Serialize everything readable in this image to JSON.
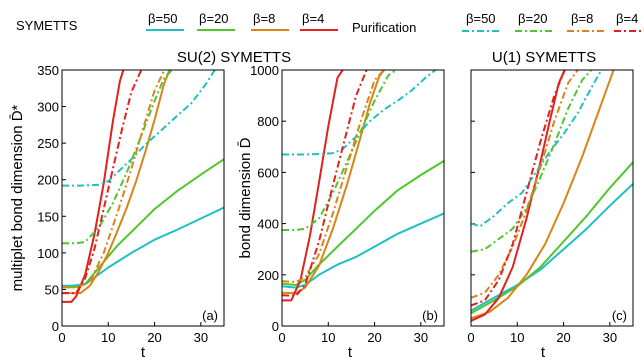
{
  "legend": {
    "groups": [
      {
        "label": "SYMETTS",
        "dash": "solid"
      },
      {
        "label": "Purification",
        "dash": "dashdot"
      }
    ],
    "betas": [
      {
        "label": "β=50",
        "color": "#1fbfc4"
      },
      {
        "label": "β=20",
        "color": "#4fc72c"
      },
      {
        "label": "β=8",
        "color": "#d98319"
      },
      {
        "label": "β=4",
        "color": "#e3201b"
      }
    ]
  },
  "chart_data": [
    {
      "type": "line",
      "panel": "(a)",
      "title": "SU(2) SYMETTS",
      "xlabel": "t",
      "ylabel": "multiplet bond dimension D̄*",
      "xlim": [
        0,
        35
      ],
      "ylim": [
        0,
        350
      ],
      "xticks": [
        0,
        10,
        20,
        30
      ],
      "yticks": [
        0,
        50,
        100,
        150,
        200,
        250,
        300,
        350
      ],
      "series": [
        {
          "name": "β=50",
          "method": "SYMETTS",
          "color": "#1fbfc4",
          "dash": "solid",
          "x": [
            0,
            2,
            5,
            10,
            15,
            20,
            25,
            30,
            35
          ],
          "y": [
            55,
            55,
            57,
            80,
            100,
            118,
            132,
            147,
            162
          ]
        },
        {
          "name": "β=20",
          "method": "SYMETTS",
          "color": "#4fc72c",
          "dash": "solid",
          "x": [
            0,
            3,
            5,
            8,
            12,
            16,
            20,
            25,
            30,
            35
          ],
          "y": [
            53,
            53,
            57,
            80,
            110,
            135,
            160,
            185,
            207,
            228
          ]
        },
        {
          "name": "β=8",
          "method": "SYMETTS",
          "color": "#d98319",
          "dash": "solid",
          "x": [
            0,
            4,
            6,
            8,
            10,
            12,
            14,
            16,
            18,
            20,
            22,
            23.5
          ],
          "y": [
            45,
            45,
            55,
            75,
            100,
            130,
            162,
            198,
            238,
            282,
            330,
            355
          ]
        },
        {
          "name": "β=4",
          "method": "SYMETTS",
          "color": "#e3201b",
          "dash": "solid",
          "x": [
            0,
            2,
            3,
            5,
            7,
            9,
            11,
            12.5,
            13.5
          ],
          "y": [
            33,
            33,
            40,
            70,
            125,
            195,
            280,
            335,
            355
          ]
        },
        {
          "name": "β=50",
          "method": "Purification",
          "color": "#1fbfc4",
          "dash": "dashdot",
          "x": [
            0,
            4,
            8,
            10,
            12,
            15,
            18,
            21,
            25,
            28,
            31,
            33.5
          ],
          "y": [
            192,
            192,
            193,
            198,
            210,
            228,
            248,
            265,
            288,
            305,
            330,
            355
          ]
        },
        {
          "name": "β=20",
          "method": "Purification",
          "color": "#4fc72c",
          "dash": "dashdot",
          "x": [
            0,
            3,
            5,
            8,
            11,
            14,
            17,
            20,
            22,
            24.5
          ],
          "y": [
            113,
            113,
            115,
            135,
            168,
            210,
            258,
            308,
            338,
            355
          ]
        },
        {
          "name": "β=8",
          "method": "Purification",
          "color": "#d98319",
          "dash": "dashdot",
          "x": [
            0,
            3,
            6,
            9,
            12,
            15,
            18,
            20,
            22.5
          ],
          "y": [
            53,
            53,
            60,
            100,
            155,
            215,
            280,
            322,
            355
          ]
        },
        {
          "name": "β=4",
          "method": "Purification",
          "color": "#e3201b",
          "dash": "dashdot",
          "x": [
            0,
            3,
            5,
            7,
            9,
            11,
            13,
            15,
            17.5
          ],
          "y": [
            45,
            45,
            65,
            105,
            160,
            215,
            270,
            320,
            355
          ]
        }
      ]
    },
    {
      "type": "line",
      "panel": "(b)",
      "title": "",
      "xlabel": "t",
      "ylabel": "bond dimension D̄",
      "xlim": [
        0,
        35
      ],
      "ylim": [
        0,
        1000
      ],
      "xticks": [
        0,
        10,
        20,
        30
      ],
      "yticks": [
        0,
        200,
        400,
        600,
        800,
        1000
      ],
      "series": [
        {
          "name": "β=50",
          "method": "SYMETTS",
          "color": "#1fbfc4",
          "dash": "solid",
          "x": [
            0,
            3,
            5,
            8,
            12,
            16,
            20,
            25,
            30,
            35
          ],
          "y": [
            155,
            150,
            160,
            200,
            240,
            270,
            310,
            360,
            400,
            440
          ]
        },
        {
          "name": "β=20",
          "method": "SYMETTS",
          "color": "#4fc72c",
          "dash": "solid",
          "x": [
            0,
            3,
            5,
            8,
            12,
            16,
            20,
            25,
            30,
            35
          ],
          "y": [
            165,
            160,
            180,
            240,
            310,
            380,
            450,
            530,
            590,
            645
          ]
        },
        {
          "name": "β=8",
          "method": "SYMETTS",
          "color": "#d98319",
          "dash": "solid",
          "x": [
            0,
            3,
            5,
            8,
            11,
            14,
            17,
            19,
            21,
            22.5
          ],
          "y": [
            130,
            128,
            150,
            235,
            380,
            550,
            740,
            870,
            975,
            1010
          ]
        },
        {
          "name": "β=4",
          "method": "SYMETTS",
          "color": "#e3201b",
          "dash": "solid",
          "x": [
            0,
            2,
            4,
            6,
            8,
            10,
            12,
            13.5
          ],
          "y": [
            100,
            100,
            180,
            350,
            560,
            780,
            970,
            1010
          ]
        },
        {
          "name": "β=50",
          "method": "Purification",
          "color": "#1fbfc4",
          "dash": "dashdot",
          "x": [
            0,
            5,
            8,
            11,
            13,
            16,
            19,
            22,
            25,
            28,
            31,
            33.5
          ],
          "y": [
            670,
            670,
            672,
            675,
            690,
            740,
            800,
            845,
            880,
            920,
            970,
            1005
          ]
        },
        {
          "name": "β=20",
          "method": "Purification",
          "color": "#4fc72c",
          "dash": "dashdot",
          "x": [
            0,
            3,
            5,
            8,
            11,
            14,
            17,
            20,
            23,
            25.5
          ],
          "y": [
            375,
            375,
            380,
            420,
            520,
            640,
            760,
            880,
            980,
            1010
          ]
        },
        {
          "name": "β=8",
          "method": "Purification",
          "color": "#d98319",
          "dash": "dashdot",
          "x": [
            0,
            3,
            5,
            8,
            11,
            14,
            17,
            20,
            22.5
          ],
          "y": [
            175,
            172,
            190,
            280,
            440,
            620,
            800,
            960,
            1010
          ]
        },
        {
          "name": "β=4",
          "method": "Purification",
          "color": "#e3201b",
          "dash": "dashdot",
          "x": [
            0,
            3,
            5,
            8,
            11,
            14,
            16,
            18.5
          ],
          "y": [
            120,
            118,
            160,
            330,
            550,
            760,
            900,
            1010
          ]
        }
      ]
    },
    {
      "type": "line",
      "panel": "(c)",
      "title": "U(1) SYMETTS",
      "xlabel": "t",
      "ylabel": "",
      "xlim": [
        0,
        35
      ],
      "ylim": [
        0,
        1000
      ],
      "xticks": [
        0,
        10,
        20,
        30
      ],
      "yticks": [
        0,
        200,
        400,
        600,
        800,
        1000
      ],
      "series": [
        {
          "name": "β=50",
          "method": "SYMETTS",
          "color": "#1fbfc4",
          "dash": "solid",
          "x": [
            0,
            5,
            10,
            15,
            20,
            25,
            30,
            35
          ],
          "y": [
            60,
            110,
            160,
            220,
            300,
            380,
            470,
            555
          ]
        },
        {
          "name": "β=20",
          "method": "SYMETTS",
          "color": "#4fc72c",
          "dash": "solid",
          "x": [
            0,
            5,
            10,
            15,
            20,
            25,
            30,
            35
          ],
          "y": [
            50,
            100,
            155,
            230,
            330,
            430,
            540,
            640
          ]
        },
        {
          "name": "β=8",
          "method": "SYMETTS",
          "color": "#d98319",
          "dash": "solid",
          "x": [
            0,
            4,
            8,
            12,
            16,
            20,
            24,
            28,
            31
          ],
          "y": [
            30,
            55,
            110,
            200,
            320,
            480,
            660,
            860,
            1010
          ]
        },
        {
          "name": "β=4",
          "method": "SYMETTS",
          "color": "#e3201b",
          "dash": "solid",
          "x": [
            0,
            3,
            6,
            9,
            12,
            15,
            17,
            19,
            20.5
          ],
          "y": [
            20,
            45,
            110,
            230,
            420,
            640,
            800,
            950,
            1010
          ]
        },
        {
          "name": "β=50",
          "method": "Purification",
          "color": "#1fbfc4",
          "dash": "dashdot",
          "x": [
            0,
            2,
            5,
            8,
            11,
            14,
            17,
            20,
            23,
            26,
            28.5
          ],
          "y": [
            400,
            390,
            430,
            480,
            520,
            600,
            680,
            750,
            830,
            930,
            1010
          ]
        },
        {
          "name": "β=20",
          "method": "Purification",
          "color": "#4fc72c",
          "dash": "dashdot",
          "x": [
            0,
            3,
            6,
            9,
            12,
            15,
            18,
            21,
            24,
            26.5
          ],
          "y": [
            290,
            300,
            340,
            380,
            460,
            580,
            710,
            850,
            960,
            1010
          ]
        },
        {
          "name": "β=8",
          "method": "Purification",
          "color": "#d98319",
          "dash": "dashdot",
          "x": [
            0,
            3,
            6,
            9,
            12,
            15,
            18,
            21,
            23.5
          ],
          "y": [
            110,
            130,
            200,
            310,
            450,
            620,
            800,
            950,
            1010
          ]
        },
        {
          "name": "β=4",
          "method": "Purification",
          "color": "#e3201b",
          "dash": "dashdot",
          "x": [
            0,
            3,
            6,
            9,
            12,
            15,
            18,
            20.5
          ],
          "y": [
            80,
            100,
            180,
            320,
            520,
            720,
            900,
            1010
          ]
        }
      ]
    }
  ]
}
